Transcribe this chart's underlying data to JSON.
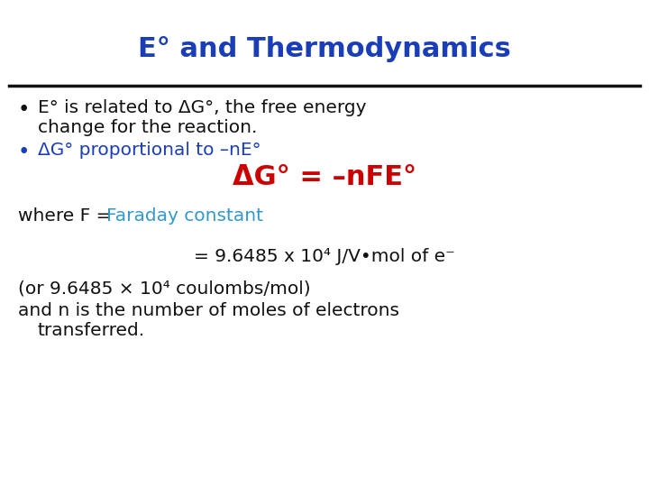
{
  "background_color": "#ffffff",
  "title": "E° and Thermodynamics",
  "title_color": "#1a3eb8",
  "title_fontsize": 22,
  "line_color": "#111111",
  "text_color": "#111111",
  "blue_text_color": "#1a3eb8",
  "equation_color": "#cc0000",
  "faraday_color": "#3399cc",
  "fontsize_main": 14.5,
  "fontsize_equation": 22,
  "bullet1": "E° is related to ΔG°, the free energy\nchange for the reaction.",
  "bullet2": "ΔG° proportional to –nE°",
  "equation": "ΔG° = –nFE°",
  "where_black": "where F = ",
  "where_blue": "Faraday constant",
  "line3": "= 9.6485 x 10⁴ J/V•mol of e⁻",
  "line4": "(or 9.6485 × 10⁴ coulombs/mol)",
  "line5a": "and n is the number of moles of electrons",
  "line5b": "   transferred."
}
